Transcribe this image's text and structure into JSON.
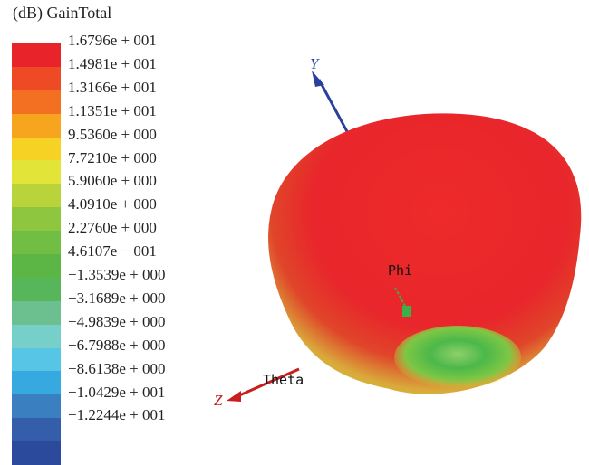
{
  "legend": {
    "title": "(dB) GainTotal",
    "colors": [
      "#e8242a",
      "#ef4a26",
      "#f36f22",
      "#f7a51f",
      "#f5d223",
      "#e2e437",
      "#b9d43a",
      "#8ec63f",
      "#72bd44",
      "#5cb646",
      "#57b65a",
      "#6cc08f",
      "#77cfca",
      "#57c6e6",
      "#36a9e1",
      "#3a7fc0",
      "#345ea9",
      "#2b4a9c"
    ],
    "ticks": [
      "1.6796e + 001",
      "1.4981e + 001",
      "1.3166e + 001",
      "1.1351e + 001",
      "9.5360e + 000",
      "7.7210e + 000",
      "5.9060e + 000",
      "4.0910e + 000",
      "2.2760e + 000",
      "4.6107e − 001",
      "−1.3539e + 000",
      "−3.1689e + 000",
      "−4.9839e + 000",
      "−6.7988e + 000",
      "−8.6138e + 000",
      "−1.0429e + 001",
      "−1.2244e + 001"
    ]
  },
  "axes": {
    "y_label": "Y",
    "z_label": "Z",
    "phi_label": "Phi",
    "theta_label": "Theta"
  }
}
